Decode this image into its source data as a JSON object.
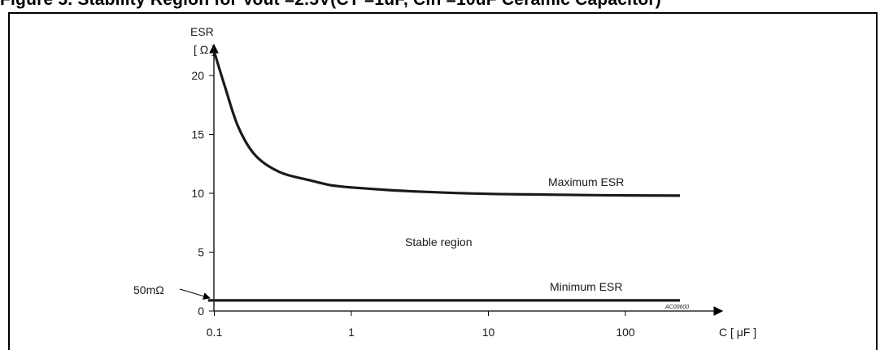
{
  "caption": "Figure 5.    Stability Region for Vout =2.5V(CT =1uF, Cin =10uF Ceramic Capacitor)",
  "chart_data": {
    "type": "line",
    "title": "",
    "xlabel": "C [ μF ]",
    "ylabel_line1": "ESR",
    "ylabel_line2": "[ Ω ]",
    "x_scale": "log",
    "x_ticks": [
      {
        "value": 0.1,
        "label": "0.1"
      },
      {
        "value": 1,
        "label": "1"
      },
      {
        "value": 10,
        "label": "10"
      },
      {
        "value": 100,
        "label": "100"
      }
    ],
    "y_ticks": [
      {
        "value": 0,
        "label": "0"
      },
      {
        "value": 5,
        "label": "5"
      },
      {
        "value": 10,
        "label": "10"
      },
      {
        "value": 15,
        "label": "15"
      },
      {
        "value": 20,
        "label": "20"
      }
    ],
    "xlim": [
      0.075,
      300
    ],
    "ylim": [
      0,
      22.5
    ],
    "grid": false,
    "series": [
      {
        "name": "Maximum ESR",
        "x": [
          0.1,
          0.12,
          0.15,
          0.2,
          0.3,
          0.5,
          0.7,
          1,
          2,
          3,
          5,
          10,
          20,
          50,
          100,
          250
        ],
        "y": [
          22,
          19.0,
          15.6,
          13.2,
          11.8,
          11.1,
          10.7,
          10.5,
          10.25,
          10.15,
          10.05,
          9.95,
          9.9,
          9.85,
          9.82,
          9.8
        ]
      },
      {
        "name": "Minimum ESR",
        "x": [
          0.09,
          250
        ],
        "y": [
          0.9,
          0.9
        ]
      }
    ],
    "annotations": {
      "stable_region": "Stable region",
      "min_marker": "50mΩ",
      "figure_code": "AC00600"
    }
  }
}
